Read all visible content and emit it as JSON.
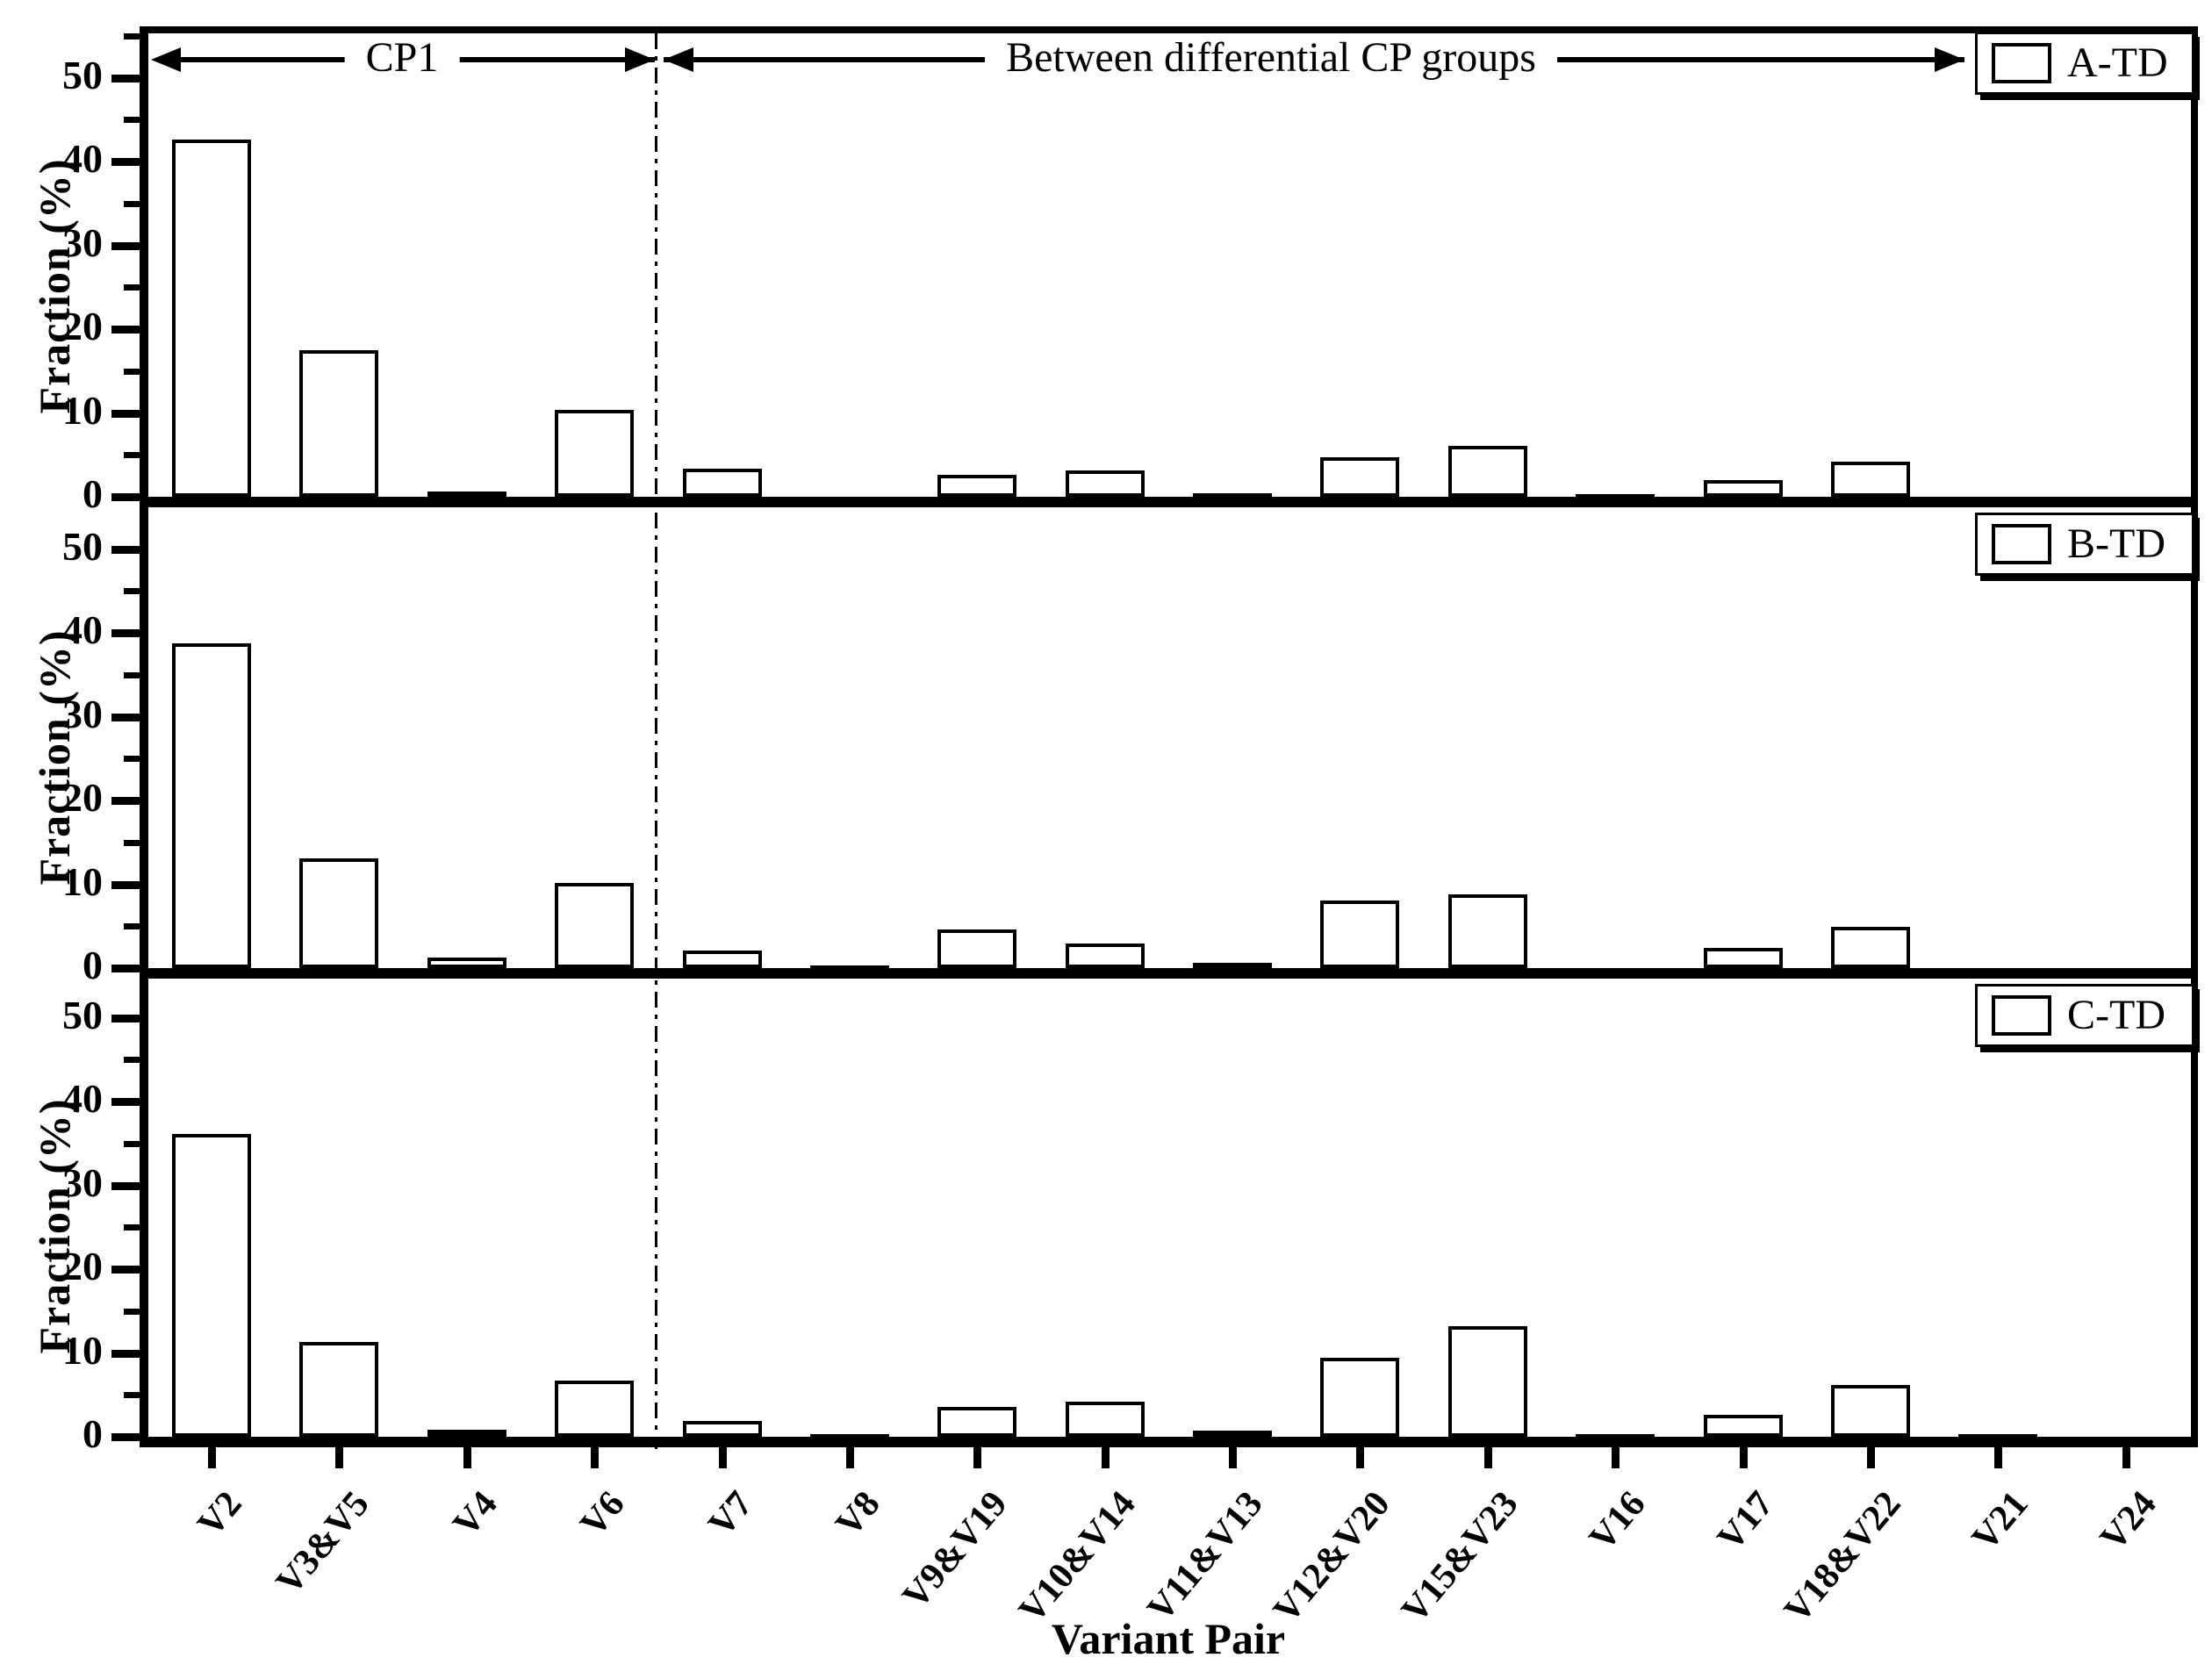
{
  "figure": {
    "xlabel": "Variant Pair",
    "ylabel": "Fraction (%)",
    "annotations": {
      "left_span": "CP1",
      "right_span": "Between differential CP groups"
    }
  },
  "chart_data": {
    "type": "bar",
    "title": "",
    "xlabel": "Variant Pair",
    "ylabel": "Fraction (%)",
    "ylim": [
      0,
      55
    ],
    "yticks": [
      0,
      10,
      20,
      30,
      40,
      50
    ],
    "minor_tick_step": 5,
    "grid": false,
    "legend_position": "top-right-inside-each-panel",
    "bar_fill": "#ffffff",
    "bar_edge": "#000000",
    "categories": [
      "V2",
      "V3&V5",
      "V4",
      "V6",
      "V7",
      "V8",
      "V9&V19",
      "V10&V14",
      "V11&V13",
      "V12&V20",
      "V15&V23",
      "V16",
      "V17",
      "V18&V22",
      "V21",
      "V24"
    ],
    "separator_after_category": "V6",
    "group_labels": {
      "left_group": "CP1",
      "left_group_categories": [
        "V2",
        "V3&V5",
        "V4",
        "V6"
      ],
      "right_group": "Between differential CP groups",
      "right_group_categories": [
        "V7",
        "V8",
        "V9&V19",
        "V10&V14",
        "V11&V13",
        "V12&V20",
        "V15&V23",
        "V16",
        "V17",
        "V18&V22",
        "V21",
        "V24"
      ]
    },
    "series": [
      {
        "name": "A-TD",
        "values": [
          42.6,
          17.5,
          0.6,
          10.4,
          3.3,
          0,
          2.6,
          3.1,
          0.4,
          4.7,
          6.1,
          0.2,
          2.0,
          4.2,
          0,
          0
        ]
      },
      {
        "name": "B-TD",
        "values": [
          38.7,
          13.1,
          1.3,
          10.2,
          2.1,
          0.3,
          4.6,
          2.9,
          0.6,
          8.1,
          8.8,
          0,
          2.4,
          4.9,
          0,
          0
        ]
      },
      {
        "name": "C-TD",
        "values": [
          36.1,
          11.3,
          0.8,
          6.7,
          1.9,
          0.3,
          3.6,
          4.2,
          0.7,
          9.4,
          13.2,
          0.3,
          2.6,
          6.2,
          0.3,
          0
        ]
      }
    ]
  }
}
